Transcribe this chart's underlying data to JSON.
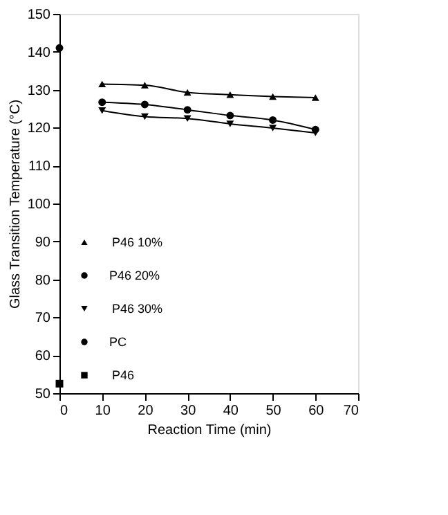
{
  "chart_data": {
    "type": "line",
    "xlabel": "Reaction Time (min)",
    "ylabel": "Glass Transition Temperature (°C)",
    "xlim": [
      0,
      70
    ],
    "xticks": [
      0,
      10,
      20,
      30,
      40,
      50,
      60,
      70
    ],
    "ylim": [
      50,
      150
    ],
    "yticks": [
      50,
      60,
      70,
      80,
      90,
      100,
      110,
      120,
      130,
      140,
      150
    ],
    "grid": false,
    "legend": "left",
    "line_style": "solid",
    "series": [
      {
        "name": "P46 10%",
        "type": "line",
        "marker": "triangle",
        "color": "#000000",
        "x": [
          10,
          20,
          30,
          40,
          50,
          60
        ],
        "values": [
          131.5,
          131.2,
          129.3,
          128.7,
          128.2,
          127.9
        ]
      },
      {
        "name": "P46 20%",
        "type": "line",
        "marker": "circle",
        "color": "#000000",
        "x": [
          10,
          20,
          30,
          40,
          50,
          60
        ],
        "values": [
          126.7,
          126.1,
          124.7,
          123.2,
          122.0,
          119.5
        ]
      },
      {
        "name": "P46 30%",
        "type": "line",
        "marker": "triangle-down",
        "color": "#000000",
        "x": [
          10,
          20,
          30,
          40,
          50,
          60
        ],
        "values": [
          124.5,
          122.9,
          122.4,
          121.0,
          119.9,
          118.6
        ]
      },
      {
        "name": "PC",
        "type": "scatter",
        "marker": "circle",
        "color": "#000000",
        "x": [
          0
        ],
        "values": [
          141
        ]
      },
      {
        "name": "P46",
        "type": "scatter",
        "marker": "square",
        "color": "#000000",
        "x": [
          0
        ],
        "values": [
          52.5
        ]
      }
    ]
  }
}
